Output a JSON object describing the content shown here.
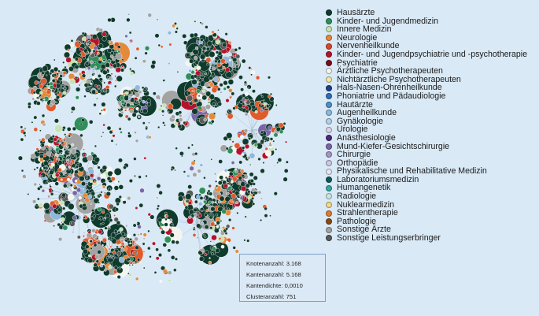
{
  "legend": [
    {
      "label": "Hausärzte",
      "color": "#0f3b2c"
    },
    {
      "label": "Kinder- und Jugendmedizin",
      "color": "#2f8f5a"
    },
    {
      "label": "Innere Medizin",
      "color": "#c7e3b0"
    },
    {
      "label": "Neurologie",
      "color": "#e58a3a"
    },
    {
      "label": "Nervenheilkunde",
      "color": "#d9472b"
    },
    {
      "label": "Kinder- und Jugendpsychiatrie und -psychotherapie",
      "color": "#b5122b"
    },
    {
      "label": "Psychiatrie",
      "color": "#7a0c1e"
    },
    {
      "label": "Ärztliche Psychotherapeuten",
      "color": "#f4f4f0"
    },
    {
      "label": "Nichtärztliche Psychotherapeuten",
      "color": "#f0e6a8"
    },
    {
      "label": "Hals-Nasen-Ohrenheilkunde",
      "color": "#1d3f8a"
    },
    {
      "label": "Phoniatrie und Pädaudiologie",
      "color": "#2f6fb3"
    },
    {
      "label": "Hautärzte",
      "color": "#4f8ec7"
    },
    {
      "label": "Augenheilkunde",
      "color": "#8db8df"
    },
    {
      "label": "Gynäkologie",
      "color": "#b6cfe6"
    },
    {
      "label": "Urologie",
      "color": "#d8d6ea"
    },
    {
      "label": "Anästhesiologie",
      "color": "#4b2a7a"
    },
    {
      "label": "Mund-Kiefer-Gesichtschirurgie",
      "color": "#7a65a8"
    },
    {
      "label": "Chirurgie",
      "color": "#a596c4"
    },
    {
      "label": "Orthopädie",
      "color": "#cfc6e2"
    },
    {
      "label": "Physikalische und Rehabilitative Medizin",
      "color": "#e8e4f0"
    },
    {
      "label": "Laboratoriumsmedizin",
      "color": "#0e5a5a"
    },
    {
      "label": "Humangenetik",
      "color": "#3aa6a0"
    },
    {
      "label": "Radiologie",
      "color": "#c8e6e0"
    },
    {
      "label": "Nuklearmedizin",
      "color": "#f3d78a"
    },
    {
      "label": "Strahlentherapie",
      "color": "#e07a2e"
    },
    {
      "label": "Pathologie",
      "color": "#8a4a12"
    },
    {
      "label": "Sonstige Ärzte",
      "color": "#a3a3a3"
    },
    {
      "label": "Sonstige Leistungserbringer",
      "color": "#5a5a5a"
    }
  ],
  "stats": [
    {
      "label": "Knotenanzahl",
      "value": "3.168"
    },
    {
      "label": "Kantenanzahl",
      "value": "5.168"
    },
    {
      "label": "Kantendichte",
      "value": "0,0010"
    },
    {
      "label": "Clusteranzahl",
      "value": "751"
    }
  ]
}
